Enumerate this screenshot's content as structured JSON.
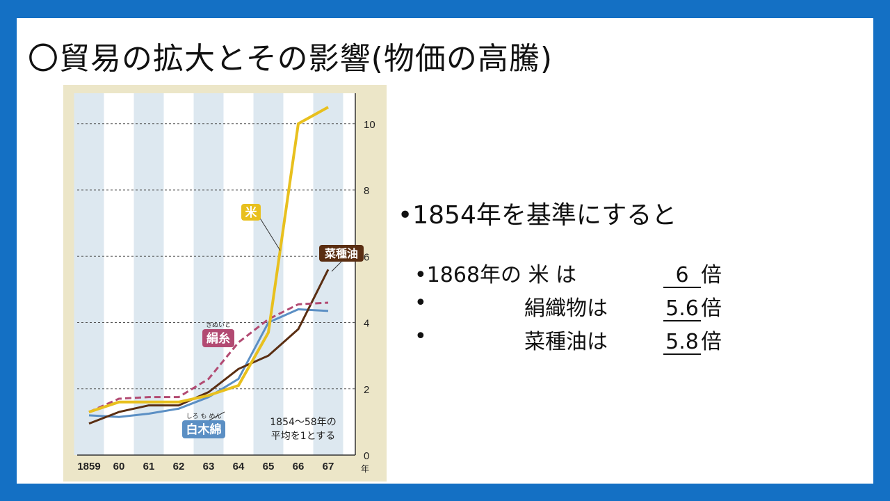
{
  "title": "〇貿易の拡大とその影響(物価の高騰)",
  "bullet_main": "•1854年を基準にすると",
  "rows": [
    {
      "dot": "•",
      "label": "1868年の 米 は",
      "value": "6",
      "unit": "倍"
    },
    {
      "dot": "•",
      "label": "絹織物は",
      "value": "5.6",
      "unit": "倍"
    },
    {
      "dot": "•",
      "label": "菜種油は",
      "value": "5.8",
      "unit": "倍"
    }
  ],
  "colors": {
    "background": "#1470c4",
    "rice": "#e8c01e",
    "silk": "#b24a72",
    "oil": "#5a2e12",
    "cotton": "#5b8fc4",
    "chart_bg": "#ece6c8",
    "band": "#dde8f0"
  },
  "chart_data": {
    "type": "line",
    "x": [
      1859,
      1860,
      1861,
      1862,
      1863,
      1864,
      1865,
      1866,
      1867
    ],
    "x_tick_labels": [
      "1859",
      "60",
      "61",
      "62",
      "63",
      "64",
      "65",
      "66",
      "67"
    ],
    "x_unit": "年",
    "y_ticks": [
      "0",
      "2",
      "4",
      "6",
      "8",
      "10"
    ],
    "ylim": [
      0,
      10.5
    ],
    "grid": "horizontal dashed",
    "note_lines": [
      "1854～58年の",
      "平均を1とする"
    ],
    "series": [
      {
        "name": "米",
        "key": "rice",
        "style": "solid",
        "values": [
          1.3,
          1.6,
          1.6,
          1.6,
          1.8,
          2.1,
          3.7,
          10.0,
          10.5
        ]
      },
      {
        "name": "絹糸",
        "ruby": "きぬいと",
        "key": "silk",
        "style": "dashed",
        "values": [
          1.3,
          1.7,
          1.75,
          1.75,
          2.3,
          3.4,
          4.1,
          4.55,
          4.6
        ]
      },
      {
        "name": "菜種油",
        "key": "oil",
        "style": "solid",
        "values": [
          0.95,
          1.3,
          1.5,
          1.5,
          1.9,
          2.6,
          3.0,
          3.8,
          5.6
        ]
      },
      {
        "name": "白木綿",
        "ruby": "しろ も めん",
        "key": "cotton",
        "style": "solid",
        "values": [
          1.2,
          1.15,
          1.25,
          1.4,
          1.75,
          2.3,
          4.0,
          4.4,
          4.35
        ]
      }
    ]
  }
}
